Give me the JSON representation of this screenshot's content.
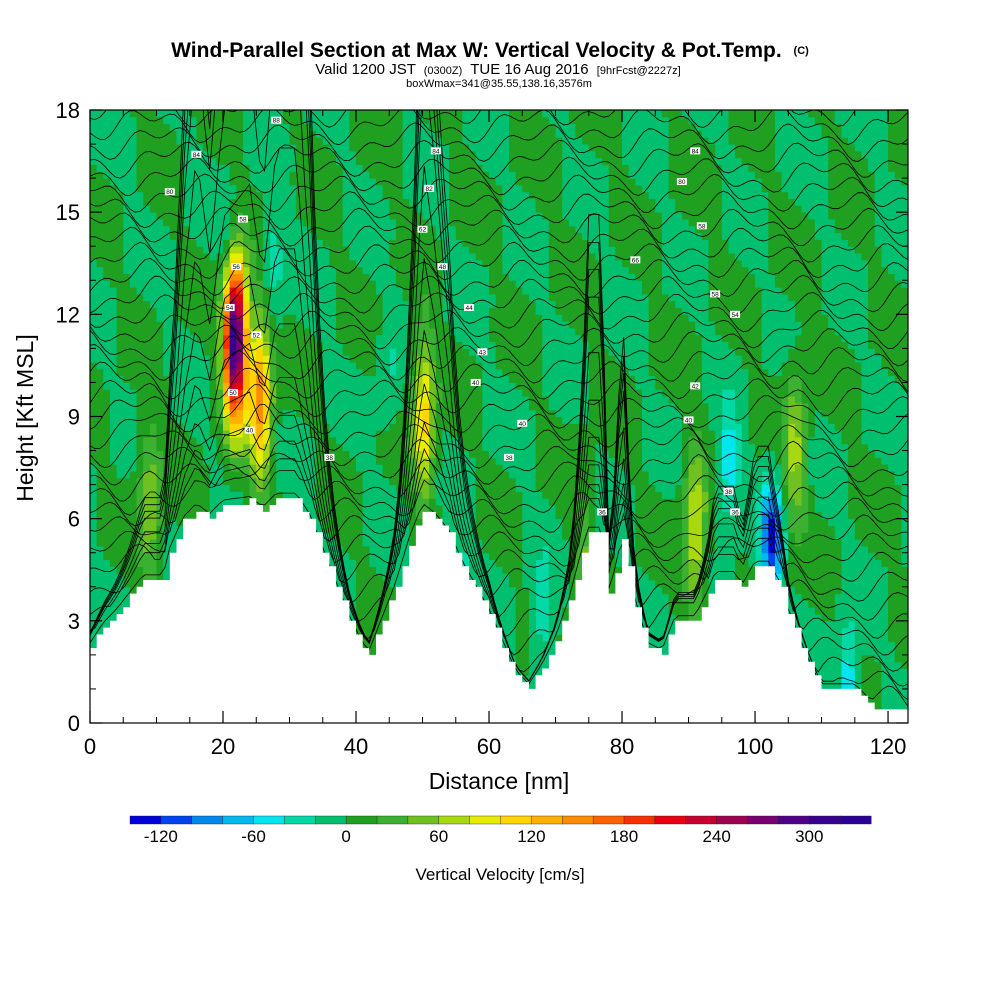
{
  "chart_data": {
    "type": "contour-cross-section",
    "title": "Wind-Parallel Section at Max W: Vertical Velocity & Pot.Temp.",
    "title_mark": "(C)",
    "subtitle_parts": [
      "Valid 1200 JST",
      "(0300Z)",
      "TUE 16 Aug 2016",
      "[9hrFcst@2227z]"
    ],
    "subtitle2": "boxWmax=341@35.55,138.16,3576m",
    "xlabel": "Distance [nm]",
    "ylabel": "Height [Kft MSL]",
    "xlim": [
      0,
      123
    ],
    "ylim": [
      0,
      18
    ],
    "xticks": [
      "0",
      "20",
      "40",
      "60",
      "80",
      "100",
      "120"
    ],
    "yticks": [
      "0",
      "3",
      "6",
      "9",
      "12",
      "15",
      "18"
    ],
    "colorbar": {
      "label": "Vertical Velocity [cm/s]",
      "ticks": [
        "-120",
        "-60",
        "0",
        "60",
        "120",
        "180",
        "240",
        "300"
      ],
      "range": [
        -140,
        340
      ],
      "step": 20,
      "colors": [
        "#0000dd",
        "#0044ee",
        "#0088f0",
        "#00b8f0",
        "#00e6f0",
        "#00d8a8",
        "#00c070",
        "#20a020",
        "#3cb030",
        "#70c020",
        "#a8d810",
        "#e8ec00",
        "#ffd400",
        "#ffb000",
        "#ff8c00",
        "#ff6000",
        "#f83000",
        "#e80010",
        "#c80030",
        "#a00050",
        "#780070",
        "#500088",
        "#380090",
        "#2a0096"
      ]
    },
    "terrain_kft": [
      [
        0,
        2.2
      ],
      [
        2,
        2.8
      ],
      [
        4,
        3.2
      ],
      [
        6,
        3.7
      ],
      [
        8,
        4.2
      ],
      [
        11,
        4.2
      ],
      [
        12,
        5.0
      ],
      [
        14,
        5.9
      ],
      [
        16,
        6.3
      ],
      [
        18,
        6.0
      ],
      [
        20,
        6.4
      ],
      [
        24,
        6.5
      ],
      [
        26,
        6.2
      ],
      [
        28,
        6.6
      ],
      [
        31,
        6.6
      ],
      [
        33,
        6.0
      ],
      [
        35,
        5.0
      ],
      [
        37,
        4.0
      ],
      [
        39,
        3.0
      ],
      [
        41,
        2.2
      ],
      [
        42,
        2.0
      ],
      [
        44,
        3.0
      ],
      [
        46,
        4.0
      ],
      [
        48,
        5.3
      ],
      [
        50,
        6.3
      ],
      [
        52,
        6.0
      ],
      [
        54,
        5.5
      ],
      [
        56,
        4.6
      ],
      [
        58,
        3.9
      ],
      [
        60,
        3.2
      ],
      [
        62,
        2.3
      ],
      [
        64,
        1.4
      ],
      [
        66,
        1.0
      ],
      [
        68,
        1.6
      ],
      [
        70,
        2.4
      ],
      [
        72,
        3.5
      ],
      [
        74,
        5.0
      ],
      [
        75,
        5.6
      ],
      [
        77,
        5.6
      ],
      [
        78,
        3.8
      ],
      [
        79,
        4.4
      ],
      [
        80,
        5.4
      ],
      [
        81,
        4.5
      ],
      [
        82,
        3.4
      ],
      [
        84,
        2.2
      ],
      [
        86,
        2.0
      ],
      [
        88,
        3.0
      ],
      [
        91,
        3.0
      ],
      [
        93,
        3.8
      ],
      [
        94,
        4.3
      ],
      [
        97,
        4.3
      ],
      [
        98,
        3.9
      ],
      [
        100,
        4.6
      ],
      [
        102,
        4.6
      ],
      [
        104,
        3.9
      ],
      [
        105,
        3.2
      ],
      [
        107,
        2.2
      ],
      [
        109,
        1.3
      ],
      [
        110,
        1.0
      ],
      [
        115,
        1.0
      ],
      [
        118,
        0.4
      ],
      [
        123,
        0.3
      ]
    ],
    "updrafts": [
      {
        "x": 21.8,
        "z": 11.3,
        "peak": 330
      },
      {
        "x": 25.6,
        "z": 9.6,
        "peak": 150
      },
      {
        "x": 50.2,
        "z": 9.0,
        "peak": 110
      },
      {
        "x": 9.0,
        "z": 6.5,
        "peak": 60
      },
      {
        "x": 91.0,
        "z": 5.6,
        "peak": 85
      },
      {
        "x": 106.0,
        "z": 8.0,
        "peak": 65
      },
      {
        "x": 74.0,
        "z": 5.0,
        "peak": 40
      }
    ],
    "downdrafts": [
      {
        "x": 102.5,
        "z": 5.4,
        "peak": -120
      },
      {
        "x": 96.0,
        "z": 7.5,
        "peak": -60
      },
      {
        "x": 21.0,
        "z": 14.0,
        "peak": -40
      },
      {
        "x": 27.5,
        "z": 13.5,
        "peak": -40
      },
      {
        "x": 114.0,
        "z": 1.3,
        "peak": -60
      },
      {
        "x": 68.0,
        "z": 3.0,
        "peak": -40
      },
      {
        "x": 56.0,
        "z": 4.0,
        "peak": -30
      },
      {
        "x": 45.0,
        "z": 10.0,
        "peak": -20
      }
    ],
    "theta_labels": [
      {
        "x": 28,
        "z": 17.7,
        "text": "88"
      },
      {
        "x": 16,
        "z": 16.7,
        "text": "84"
      },
      {
        "x": 52,
        "z": 16.8,
        "text": "84"
      },
      {
        "x": 91,
        "z": 16.8,
        "text": "84"
      },
      {
        "x": 12,
        "z": 15.6,
        "text": "80"
      },
      {
        "x": 51,
        "z": 15.7,
        "text": "82"
      },
      {
        "x": 89,
        "z": 15.9,
        "text": "80"
      },
      {
        "x": 23,
        "z": 14.8,
        "text": "58"
      },
      {
        "x": 50,
        "z": 14.5,
        "text": "62"
      },
      {
        "x": 92,
        "z": 14.6,
        "text": "58"
      },
      {
        "x": 22,
        "z": 13.4,
        "text": "56"
      },
      {
        "x": 53,
        "z": 13.4,
        "text": "48"
      },
      {
        "x": 82,
        "z": 13.6,
        "text": "66"
      },
      {
        "x": 21,
        "z": 12.2,
        "text": "54"
      },
      {
        "x": 57,
        "z": 12.2,
        "text": "44"
      },
      {
        "x": 94,
        "z": 12.6,
        "text": "58"
      },
      {
        "x": 25,
        "z": 11.4,
        "text": "52"
      },
      {
        "x": 59,
        "z": 10.9,
        "text": "43"
      },
      {
        "x": 97,
        "z": 12.0,
        "text": "54"
      },
      {
        "x": 58,
        "z": 10.0,
        "text": "40"
      },
      {
        "x": 91,
        "z": 9.9,
        "text": "42"
      },
      {
        "x": 21.5,
        "z": 9.7,
        "text": "50"
      },
      {
        "x": 65,
        "z": 8.8,
        "text": "40"
      },
      {
        "x": 90,
        "z": 8.9,
        "text": "40"
      },
      {
        "x": 24,
        "z": 8.6,
        "text": "40"
      },
      {
        "x": 63,
        "z": 7.8,
        "text": "38"
      },
      {
        "x": 36,
        "z": 7.8,
        "text": "38"
      },
      {
        "x": 96,
        "z": 6.8,
        "text": "38"
      },
      {
        "x": 77,
        "z": 6.2,
        "text": "36"
      },
      {
        "x": 97,
        "z": 6.2,
        "text": "36"
      }
    ]
  }
}
